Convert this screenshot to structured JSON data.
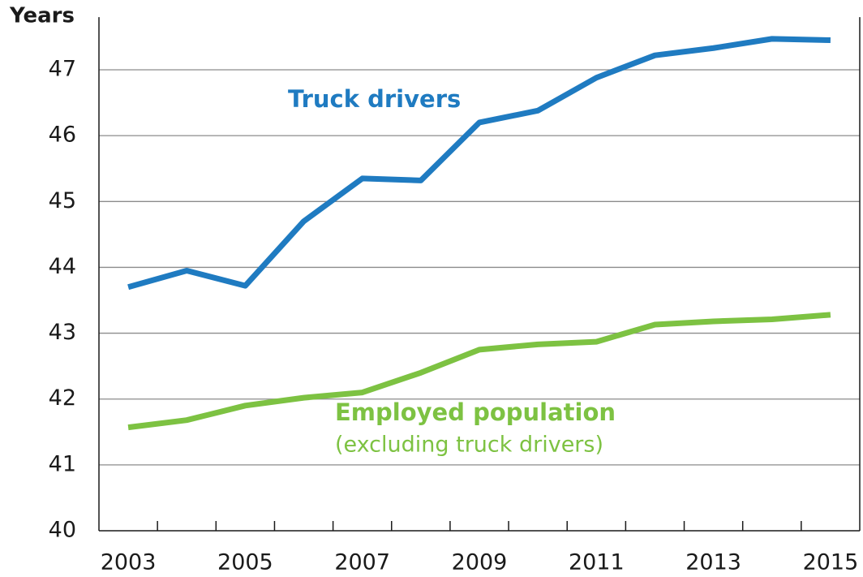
{
  "chart_data": {
    "type": "line",
    "y_label": "Years",
    "annotations": [
      "(excluding truck drivers)"
    ],
    "categories": [
      "2003",
      null,
      "2005",
      null,
      "2007",
      null,
      "2009",
      null,
      "2011",
      null,
      "2013",
      null,
      "2015"
    ],
    "series": [
      {
        "name": "Truck drivers",
        "color": "#1f7bc1",
        "values": [
          43.7,
          43.95,
          43.72,
          44.7,
          45.35,
          45.32,
          46.2,
          46.38,
          46.88,
          47.22,
          47.33,
          47.47,
          47.45
        ]
      },
      {
        "name": "Employed population",
        "color": "#7dc242",
        "values": [
          41.57,
          41.68,
          41.9,
          42.02,
          42.1,
          42.4,
          42.75,
          42.83,
          42.87,
          43.13,
          43.18,
          43.21,
          43.28
        ]
      }
    ],
    "ylim": [
      40,
      47.8
    ],
    "yticks": [
      40,
      41,
      42,
      43,
      44,
      45,
      46,
      47
    ],
    "grid": true
  }
}
